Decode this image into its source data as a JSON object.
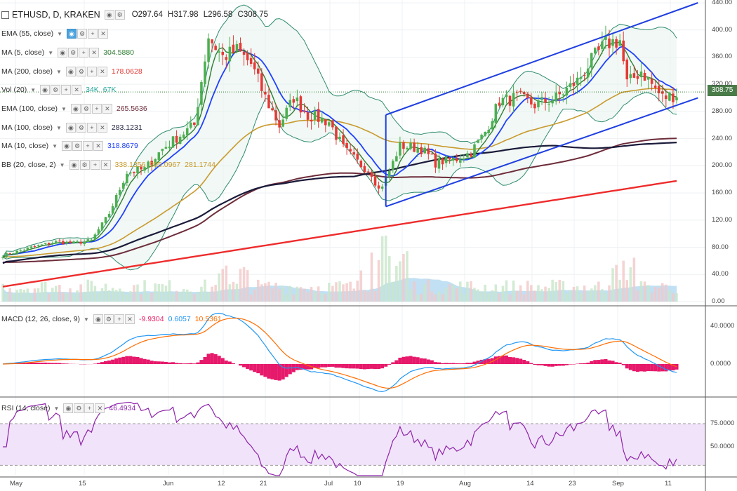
{
  "header": {
    "symbol": "ETHUSD, D, KRAKEN",
    "open": "O297.64",
    "high": "H317.98",
    "low": "L296.58",
    "close": "C308.75"
  },
  "indicators": [
    {
      "id": "ema55",
      "name": "EMA (55, close)",
      "values": [],
      "color": "#999999",
      "active": true
    },
    {
      "id": "ma5",
      "name": "MA (5, close)",
      "values": [
        "304.5880"
      ],
      "color": "#2e7d32"
    },
    {
      "id": "ma200",
      "name": "MA (200, close)",
      "values": [
        "178.0628"
      ],
      "color": "#e53935"
    },
    {
      "id": "vol",
      "name": "Vol (20)",
      "values": [
        "34K",
        "67K"
      ],
      "color": "#26a69a"
    },
    {
      "id": "ema100",
      "name": "EMA (100, close)",
      "values": [
        "265.5636"
      ],
      "color": "#6d2c3a"
    },
    {
      "id": "ma100",
      "name": "MA (100, close)",
      "values": [
        "283.1231"
      ],
      "color": "#1a1a3a"
    },
    {
      "id": "ma10",
      "name": "MA (10, close)",
      "values": [
        "318.8679"
      ],
      "color": "#1e40ff"
    },
    {
      "id": "bb",
      "name": "BB (20, close, 2)",
      "values": [
        "338.1356",
        "395.0967",
        "281.1744"
      ],
      "color": "#c99a2e"
    }
  ],
  "macd": {
    "name": "MACD (12, 26, close, 9)",
    "values": [
      "-9.9304",
      "0.6057",
      "10.5361"
    ],
    "colors": [
      "#e91e63",
      "#2196f3",
      "#ff6d00"
    ]
  },
  "rsi": {
    "name": "RSI (14, close)",
    "values": [
      "46.4934"
    ],
    "color": "#8e24aa"
  },
  "last_price": "308.75",
  "colors": {
    "up": "#4caf50",
    "down": "#e53935",
    "bb": "#2e8b6e",
    "channel": "#1f3fe0",
    "ma200": "#ee2b2b",
    "ema100": "#6d2c3a",
    "ma100": "#1a1a3a",
    "ma10": "#1e40ff",
    "ma5": "#2e7d32",
    "ema55": "#c99a2e"
  },
  "chart_data": {
    "type": "candlestick",
    "x_labels": [
      "May",
      "15",
      "Jun",
      "12",
      "21",
      "Jul",
      "10",
      "19",
      "Aug",
      "14",
      "23",
      "Sep",
      "11"
    ],
    "price_axis": [
      "440.00",
      "400.00",
      "360.00",
      "320.00",
      "280.00",
      "240.00",
      "200.00",
      "160.00",
      "120.00",
      "80.00",
      "40.00",
      "0.00"
    ],
    "price_range": [
      0,
      440
    ],
    "macd_axis": [
      "40.0000",
      "0.0000"
    ],
    "rsi_axis": [
      "75.0000",
      "50.0000"
    ],
    "price_anchors": [
      {
        "i": 0,
        "v": 68
      },
      {
        "i": 8,
        "v": 80
      },
      {
        "i": 15,
        "v": 88
      },
      {
        "i": 20,
        "v": 86
      },
      {
        "i": 25,
        "v": 90
      },
      {
        "i": 30,
        "v": 130
      },
      {
        "i": 35,
        "v": 190
      },
      {
        "i": 40,
        "v": 195
      },
      {
        "i": 45,
        "v": 225
      },
      {
        "i": 50,
        "v": 245
      },
      {
        "i": 54,
        "v": 260
      },
      {
        "i": 58,
        "v": 390
      },
      {
        "i": 62,
        "v": 360
      },
      {
        "i": 66,
        "v": 370
      },
      {
        "i": 70,
        "v": 350
      },
      {
        "i": 74,
        "v": 300
      },
      {
        "i": 78,
        "v": 260
      },
      {
        "i": 82,
        "v": 300
      },
      {
        "i": 86,
        "v": 275
      },
      {
        "i": 92,
        "v": 265
      },
      {
        "i": 96,
        "v": 225
      },
      {
        "i": 100,
        "v": 205
      },
      {
        "i": 104,
        "v": 190
      },
      {
        "i": 106,
        "v": 165
      },
      {
        "i": 108,
        "v": 180
      },
      {
        "i": 112,
        "v": 230
      },
      {
        "i": 118,
        "v": 225
      },
      {
        "i": 122,
        "v": 205
      },
      {
        "i": 128,
        "v": 210
      },
      {
        "i": 132,
        "v": 220
      },
      {
        "i": 136,
        "v": 250
      },
      {
        "i": 140,
        "v": 295
      },
      {
        "i": 145,
        "v": 300
      },
      {
        "i": 150,
        "v": 290
      },
      {
        "i": 156,
        "v": 300
      },
      {
        "i": 162,
        "v": 325
      },
      {
        "i": 166,
        "v": 355
      },
      {
        "i": 170,
        "v": 380
      },
      {
        "i": 174,
        "v": 385
      },
      {
        "i": 176,
        "v": 320
      },
      {
        "i": 180,
        "v": 340
      },
      {
        "i": 186,
        "v": 300
      },
      {
        "i": 190,
        "v": 305
      }
    ],
    "candle_count": 191,
    "overlays": [
      "BB upper",
      "BB lower",
      "EMA 55",
      "MA 5",
      "MA 10",
      "EMA 100",
      "MA 100",
      "MA 200"
    ],
    "channel": {
      "upper": [
        [
          108,
          275
        ],
        [
          196,
          440
        ]
      ],
      "lower": [
        [
          108,
          140
        ],
        [
          196,
          300
        ]
      ]
    }
  }
}
